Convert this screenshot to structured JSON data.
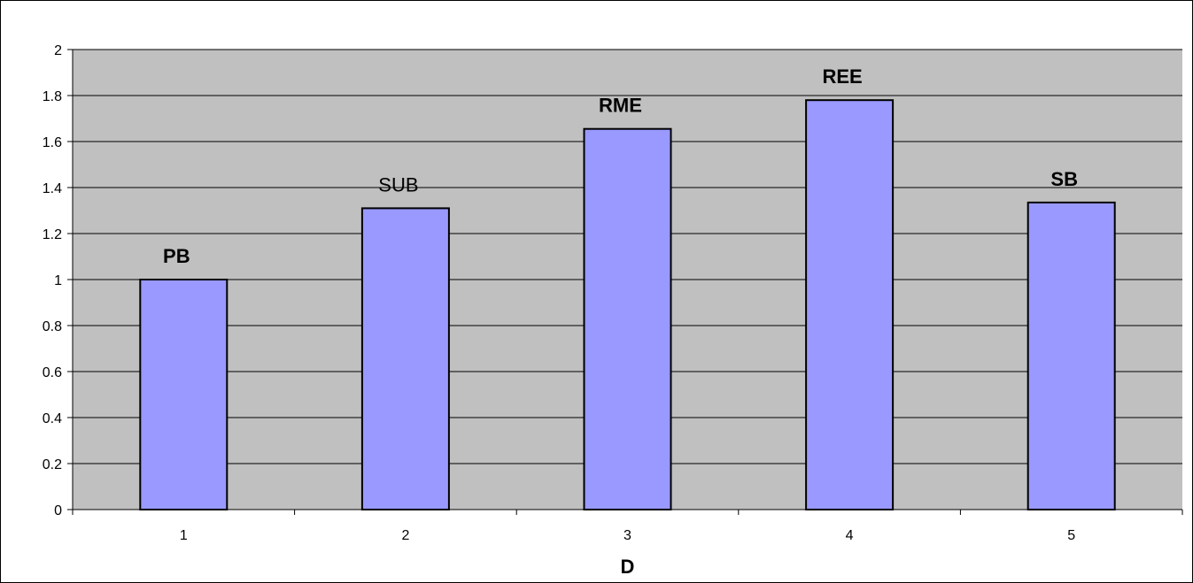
{
  "chart_data": {
    "type": "bar",
    "categories": [
      "1",
      "2",
      "3",
      "4",
      "5"
    ],
    "values": [
      1.0,
      1.31,
      1.655,
      1.78,
      1.335
    ],
    "bar_labels": [
      "PB",
      "SUB",
      "RME",
      "REE",
      "SB"
    ],
    "bar_label_bold": [
      true,
      false,
      true,
      true,
      true
    ],
    "xlabel": "D",
    "ylabel": "",
    "title": "",
    "ylim": [
      0,
      2
    ],
    "yticks": [
      "0",
      "0.2",
      "0.4",
      "0.6",
      "0.8",
      "1",
      "1.2",
      "1.4",
      "1.6",
      "1.8",
      "2"
    ],
    "grid": true,
    "legend": false,
    "colors": {
      "plot_background": "#c0c0c0",
      "bar_fill": "#9999ff",
      "bar_stroke": "#000000",
      "gridline": "#000000"
    }
  }
}
